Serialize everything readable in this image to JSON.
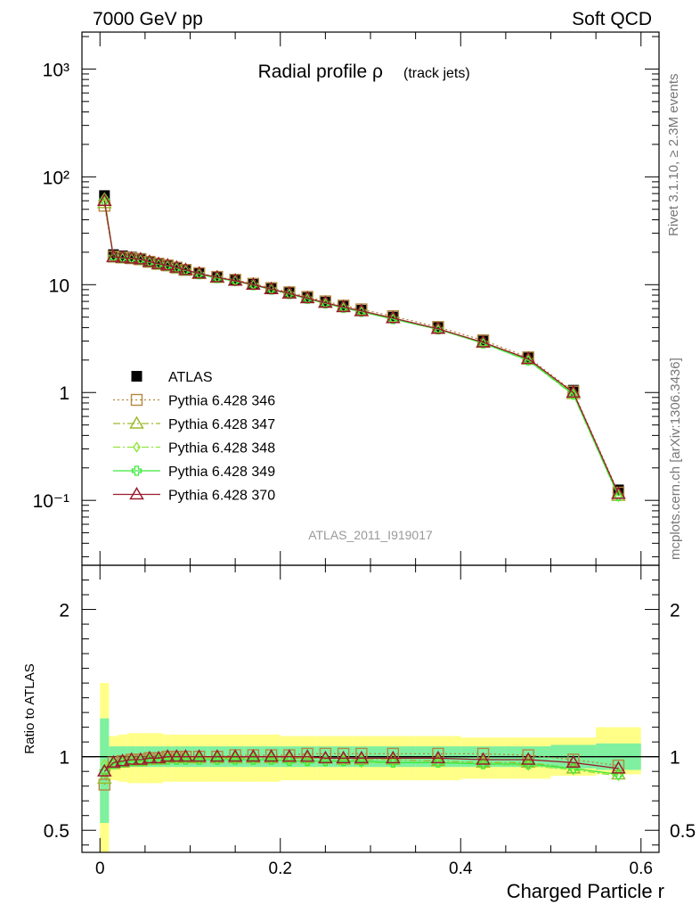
{
  "header": {
    "left": "7000 GeV pp",
    "right": "Soft QCD"
  },
  "side_labels": {
    "rivet": "Rivet 3.1.10, ≥ 2.3M events",
    "mcplots": "mcplots.cern.ch [arXiv:1306.3436]"
  },
  "chart_data": [
    {
      "type": "scatter",
      "title_main": "Radial profile ρ",
      "title_sub": "(track jets)",
      "watermark": "ATLAS_2011_I919017",
      "yscale": "log",
      "ylim": [
        0.025,
        2200
      ],
      "xlim": [
        -0.02,
        0.62
      ],
      "y_tick_labels": [
        "10⁻¹",
        "1",
        "10",
        "10²",
        "10³"
      ],
      "legend_position": "bottom-left",
      "x": [
        0.005,
        0.015,
        0.025,
        0.035,
        0.045,
        0.055,
        0.065,
        0.075,
        0.085,
        0.095,
        0.11,
        0.13,
        0.15,
        0.17,
        0.19,
        0.21,
        0.23,
        0.25,
        0.27,
        0.29,
        0.325,
        0.375,
        0.425,
        0.475,
        0.525,
        0.575
      ],
      "series": [
        {
          "name": "ATLAS",
          "color": "#000000",
          "marker": "filled-square",
          "line": "none",
          "values": [
            67,
            19,
            18.5,
            18,
            17.5,
            16.5,
            15.8,
            15.2,
            14.5,
            13.8,
            12.8,
            11.8,
            11,
            10.1,
            9.2,
            8.4,
            7.6,
            6.9,
            6.3,
            5.8,
            5.0,
            4.0,
            3.0,
            2.1,
            1.05,
            0.125
          ]
        },
        {
          "name": "Pythia 6.428 346",
          "color": "#b5873f",
          "marker": "open-square",
          "line": "dotted",
          "values": [
            54,
            18.2,
            17.9,
            17.6,
            17.2,
            16.3,
            15.6,
            15.1,
            14.4,
            13.7,
            12.8,
            11.8,
            11.1,
            10.2,
            9.3,
            8.5,
            7.7,
            7.0,
            6.4,
            5.9,
            5.1,
            4.05,
            3.05,
            2.12,
            1.02,
            0.118
          ]
        },
        {
          "name": "Pythia 6.428 347",
          "color": "#9dbb2e",
          "marker": "open-triangle",
          "line": "dashdot",
          "values": [
            57,
            18.0,
            17.6,
            17.4,
            17.0,
            16.1,
            15.4,
            15.0,
            14.3,
            13.6,
            12.6,
            11.6,
            10.9,
            10.0,
            9.1,
            8.3,
            7.5,
            6.8,
            6.2,
            5.7,
            4.9,
            3.9,
            2.9,
            2.02,
            0.97,
            0.11
          ]
        },
        {
          "name": "Pythia 6.428 348",
          "color": "#8ee63c",
          "marker": "open-diamond",
          "line": "dashdot",
          "values": [
            64,
            18.1,
            17.7,
            17.5,
            17.1,
            16.2,
            15.5,
            15.0,
            14.3,
            13.6,
            12.6,
            11.6,
            10.9,
            10.0,
            9.1,
            8.2,
            7.4,
            6.7,
            6.1,
            5.6,
            4.8,
            3.85,
            2.85,
            1.98,
            0.95,
            0.108
          ]
        },
        {
          "name": "Pythia 6.428 349",
          "color": "#3ee83e",
          "marker": "open-cross",
          "line": "solid",
          "values": [
            60,
            18.0,
            17.6,
            17.4,
            17.0,
            16.1,
            15.4,
            14.9,
            14.2,
            13.5,
            12.5,
            11.5,
            10.8,
            9.9,
            9.0,
            8.2,
            7.4,
            6.7,
            6.1,
            5.6,
            4.8,
            3.85,
            2.86,
            1.99,
            0.96,
            0.11
          ]
        },
        {
          "name": "Pythia 6.428 370",
          "color": "#9b1c2e",
          "marker": "open-triangle",
          "line": "solid",
          "values": [
            60,
            18.1,
            17.8,
            17.5,
            17.2,
            16.3,
            15.6,
            15.1,
            14.4,
            13.7,
            12.7,
            11.7,
            10.9,
            10.0,
            9.1,
            8.3,
            7.5,
            6.8,
            6.2,
            5.7,
            4.9,
            3.9,
            2.92,
            2.05,
            1.0,
            0.115
          ]
        }
      ]
    },
    {
      "type": "line",
      "ylabel": "Ratio to ATLAS",
      "xlabel": "Charged Particle r",
      "ylim": [
        0.35,
        2.3
      ],
      "xlim": [
        -0.02,
        0.62
      ],
      "y_tick_labels": [
        "0.5",
        "1",
        "2"
      ],
      "x_tick_labels": [
        "0",
        "0.2",
        "0.4",
        "0.6"
      ],
      "bands": {
        "x_edges": [
          0.0,
          0.01,
          0.02,
          0.03,
          0.04,
          0.05,
          0.06,
          0.07,
          0.08,
          0.09,
          0.1,
          0.12,
          0.14,
          0.16,
          0.18,
          0.2,
          0.22,
          0.24,
          0.26,
          0.28,
          0.3,
          0.35,
          0.4,
          0.45,
          0.5,
          0.55,
          0.6
        ],
        "inner_color": "#7ff0a0",
        "outer_color": "#ffff88",
        "inner": [
          [
            0.55,
            1.26
          ],
          [
            0.93,
            1.07
          ],
          [
            0.93,
            1.07
          ],
          [
            0.93,
            1.07
          ],
          [
            0.93,
            1.07
          ],
          [
            0.93,
            1.07
          ],
          [
            0.93,
            1.07
          ],
          [
            0.93,
            1.07
          ],
          [
            0.93,
            1.07
          ],
          [
            0.93,
            1.07
          ],
          [
            0.93,
            1.07
          ],
          [
            0.93,
            1.07
          ],
          [
            0.93,
            1.07
          ],
          [
            0.93,
            1.07
          ],
          [
            0.93,
            1.07
          ],
          [
            0.93,
            1.07
          ],
          [
            0.93,
            1.07
          ],
          [
            0.93,
            1.07
          ],
          [
            0.93,
            1.07
          ],
          [
            0.93,
            1.07
          ],
          [
            0.93,
            1.07
          ],
          [
            0.93,
            1.07
          ],
          [
            0.93,
            1.07
          ],
          [
            0.93,
            1.07
          ],
          [
            0.92,
            1.08
          ],
          [
            0.91,
            1.09
          ]
        ],
        "outer": [
          [
            0.35,
            1.5
          ],
          [
            0.84,
            1.14
          ],
          [
            0.83,
            1.15
          ],
          [
            0.82,
            1.16
          ],
          [
            0.82,
            1.16
          ],
          [
            0.82,
            1.16
          ],
          [
            0.82,
            1.16
          ],
          [
            0.83,
            1.15
          ],
          [
            0.83,
            1.15
          ],
          [
            0.83,
            1.15
          ],
          [
            0.83,
            1.15
          ],
          [
            0.83,
            1.15
          ],
          [
            0.83,
            1.15
          ],
          [
            0.83,
            1.15
          ],
          [
            0.83,
            1.15
          ],
          [
            0.84,
            1.14
          ],
          [
            0.84,
            1.14
          ],
          [
            0.84,
            1.14
          ],
          [
            0.84,
            1.14
          ],
          [
            0.84,
            1.14
          ],
          [
            0.84,
            1.14
          ],
          [
            0.84,
            1.14
          ],
          [
            0.85,
            1.13
          ],
          [
            0.85,
            1.13
          ],
          [
            0.87,
            1.13
          ],
          [
            0.88,
            1.2
          ]
        ]
      },
      "series": [
        {
          "name": "Pythia 6.428 346",
          "values": [
            0.81,
            0.96,
            0.97,
            0.98,
            0.98,
            0.99,
            0.99,
            1.0,
            1.0,
            1.0,
            1.0,
            1.0,
            1.01,
            1.01,
            1.01,
            1.01,
            1.02,
            1.02,
            1.02,
            1.02,
            1.02,
            1.02,
            1.02,
            1.01,
            0.98,
            0.94
          ]
        },
        {
          "name": "Pythia 6.428 347",
          "values": [
            0.85,
            0.95,
            0.96,
            0.97,
            0.97,
            0.98,
            0.98,
            0.99,
            0.99,
            0.99,
            0.99,
            0.99,
            0.99,
            0.99,
            0.99,
            0.99,
            0.99,
            0.99,
            0.98,
            0.98,
            0.98,
            0.97,
            0.96,
            0.96,
            0.92,
            0.88
          ]
        },
        {
          "name": "Pythia 6.428 348",
          "values": [
            0.95,
            0.95,
            0.96,
            0.97,
            0.98,
            0.98,
            0.98,
            0.99,
            0.99,
            0.99,
            0.99,
            0.99,
            0.99,
            0.98,
            0.98,
            0.98,
            0.97,
            0.97,
            0.97,
            0.96,
            0.96,
            0.96,
            0.95,
            0.94,
            0.91,
            0.87
          ]
        },
        {
          "name": "Pythia 6.428 349",
          "values": [
            0.9,
            0.95,
            0.96,
            0.97,
            0.97,
            0.98,
            0.98,
            0.98,
            0.98,
            0.98,
            0.98,
            0.98,
            0.98,
            0.98,
            0.98,
            0.97,
            0.97,
            0.97,
            0.97,
            0.97,
            0.96,
            0.96,
            0.95,
            0.95,
            0.92,
            0.88
          ]
        },
        {
          "name": "Pythia 6.428 370",
          "values": [
            0.9,
            0.96,
            0.97,
            0.98,
            0.98,
            0.99,
            0.99,
            1.0,
            1.0,
            1.0,
            1.0,
            1.0,
            1.0,
            1.0,
            1.0,
            1.0,
            1.0,
            0.99,
            0.99,
            0.99,
            0.99,
            0.99,
            0.98,
            0.98,
            0.96,
            0.92
          ]
        }
      ]
    }
  ]
}
